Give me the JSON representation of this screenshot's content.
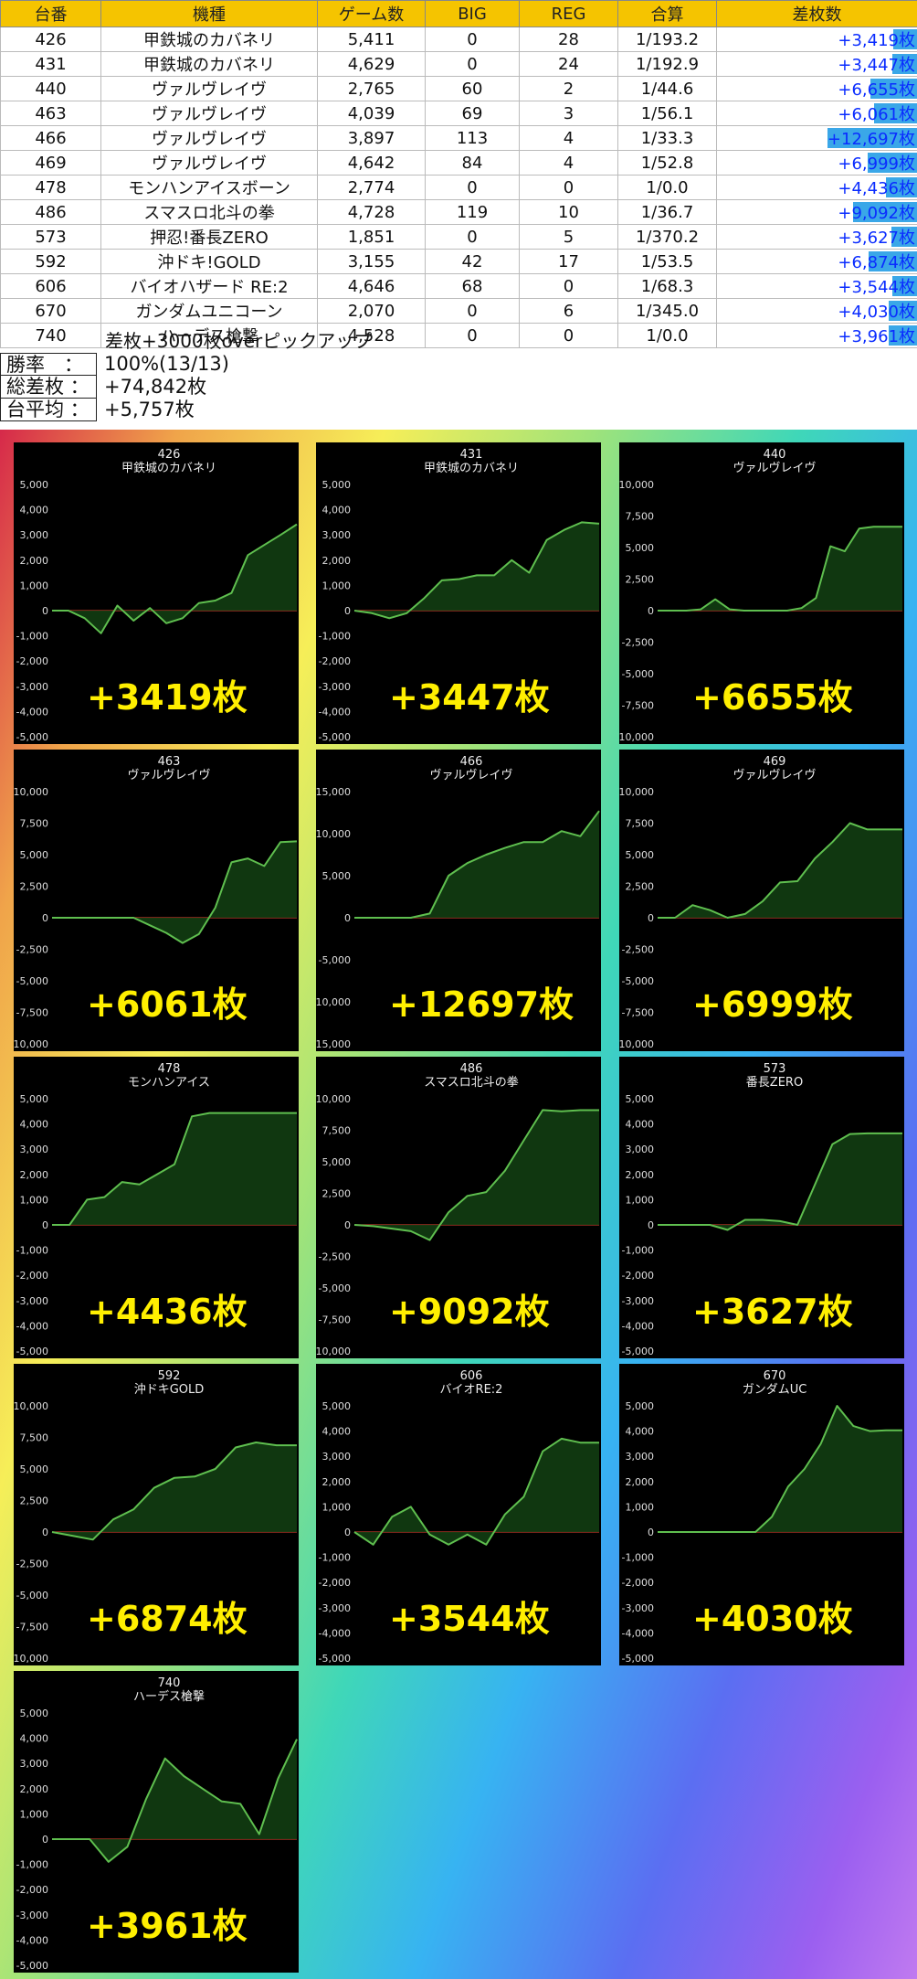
{
  "table": {
    "headers": [
      "台番",
      "機種",
      "ゲーム数",
      "BIG",
      "REG",
      "合算",
      "差枚数"
    ],
    "rows": [
      {
        "num": "426",
        "model": "甲鉄城のカバネリ",
        "games": "5,411",
        "big": "0",
        "reg": "28",
        "total": "1/193.2",
        "diff": "+3,419枚",
        "diff_value": 3419
      },
      {
        "num": "431",
        "model": "甲鉄城のカバネリ",
        "games": "4,629",
        "big": "0",
        "reg": "24",
        "total": "1/192.9",
        "diff": "+3,447枚",
        "diff_value": 3447
      },
      {
        "num": "440",
        "model": "ヴァルヴレイヴ",
        "games": "2,765",
        "big": "60",
        "reg": "2",
        "total": "1/44.6",
        "diff": "+6,655枚",
        "diff_value": 6655
      },
      {
        "num": "463",
        "model": "ヴァルヴレイヴ",
        "games": "4,039",
        "big": "69",
        "reg": "3",
        "total": "1/56.1",
        "diff": "+6,061枚",
        "diff_value": 6061
      },
      {
        "num": "466",
        "model": "ヴァルヴレイヴ",
        "games": "3,897",
        "big": "113",
        "reg": "4",
        "total": "1/33.3",
        "diff": "+12,697枚",
        "diff_value": 12697
      },
      {
        "num": "469",
        "model": "ヴァルヴレイヴ",
        "games": "4,642",
        "big": "84",
        "reg": "4",
        "total": "1/52.8",
        "diff": "+6,999枚",
        "diff_value": 6999
      },
      {
        "num": "478",
        "model": "モンハンアイスボーン",
        "games": "2,774",
        "big": "0",
        "reg": "0",
        "total": "1/0.0",
        "diff": "+4,436枚",
        "diff_value": 4436
      },
      {
        "num": "486",
        "model": "スマスロ北斗の拳",
        "games": "4,728",
        "big": "119",
        "reg": "10",
        "total": "1/36.7",
        "diff": "+9,092枚",
        "diff_value": 9092
      },
      {
        "num": "573",
        "model": "押忍!番長ZERO",
        "games": "1,851",
        "big": "0",
        "reg": "5",
        "total": "1/370.2",
        "diff": "+3,627枚",
        "diff_value": 3627
      },
      {
        "num": "592",
        "model": "沖ドキ!GOLD",
        "games": "3,155",
        "big": "42",
        "reg": "17",
        "total": "1/53.5",
        "diff": "+6,874枚",
        "diff_value": 6874
      },
      {
        "num": "606",
        "model": "バイオハザード RE:2",
        "games": "4,646",
        "big": "68",
        "reg": "0",
        "total": "1/68.3",
        "diff": "+3,544枚",
        "diff_value": 3544
      },
      {
        "num": "670",
        "model": "ガンダムユニコーン",
        "games": "2,070",
        "big": "0",
        "reg": "6",
        "total": "1/345.0",
        "diff": "+4,030枚",
        "diff_value": 4030
      },
      {
        "num": "740",
        "model": "ハーデス槍撃",
        "games": "4,528",
        "big": "0",
        "reg": "0",
        "total": "1/0.0",
        "diff": "+3,961枚",
        "diff_value": 3961
      }
    ],
    "bar_color": "#3aa7e8",
    "header_color": "#f5c400"
  },
  "note": "差枚+3000枚overピックアップ",
  "stats": [
    {
      "label": "勝率　：",
      "value": "100%(13/13)"
    },
    {
      "label": "総差枚 ：",
      "value": "+74,842枚"
    },
    {
      "label": "台平均 ：",
      "value": "+5,757枚"
    }
  ],
  "colors": {
    "line": "#5fbf4f",
    "fill": "#123d12",
    "zero_line": "#c0392b",
    "big_label": "#ffef00"
  },
  "chart_data": [
    {
      "type": "area",
      "number": "426",
      "name": "甲鉄城のカバネリ",
      "label": "+3419枚",
      "ylim": [
        -5000,
        5000
      ],
      "ticks": [
        "5,000",
        "4,000",
        "3,000",
        "2,000",
        "1,000",
        "0",
        "-1,000",
        "-2,000",
        "-3,000",
        "-4,000",
        "-5,000"
      ],
      "values": [
        0,
        0,
        -300,
        -900,
        200,
        -400,
        100,
        -500,
        -300,
        300,
        400,
        700,
        2200,
        2600,
        3000,
        3419
      ]
    },
    {
      "type": "area",
      "number": "431",
      "name": "甲鉄城のカバネリ",
      "label": "+3447枚",
      "ylim": [
        -5000,
        5000
      ],
      "ticks": [
        "5,000",
        "4,000",
        "3,000",
        "2,000",
        "1,000",
        "0",
        "-1,000",
        "-2,000",
        "-3,000",
        "-4,000",
        "-5,000"
      ],
      "values": [
        0,
        -100,
        -300,
        -100,
        500,
        1200,
        1250,
        1400,
        1400,
        2000,
        1500,
        2800,
        3200,
        3500,
        3447
      ]
    },
    {
      "type": "area",
      "number": "440",
      "name": "ヴァルヴレイヴ",
      "label": "+6655枚",
      "ylim": [
        -10000,
        10000
      ],
      "ticks": [
        "10,000",
        "7,500",
        "5,000",
        "2,500",
        "0",
        "-2,500",
        "-5,000",
        "-7,500",
        "-10,000"
      ],
      "values": [
        0,
        0,
        0,
        100,
        900,
        100,
        0,
        0,
        0,
        0,
        200,
        1000,
        5100,
        4700,
        6500,
        6655,
        6655,
        6655
      ]
    },
    {
      "type": "area",
      "number": "463",
      "name": "ヴァルヴレイヴ",
      "label": "+6061枚",
      "ylim": [
        -10000,
        10000
      ],
      "ticks": [
        "10,000",
        "7,500",
        "5,000",
        "2,500",
        "0",
        "-2,500",
        "-5,000",
        "-7,500",
        "-10,000"
      ],
      "values": [
        0,
        0,
        0,
        0,
        0,
        0,
        -600,
        -1200,
        -2000,
        -1300,
        800,
        4400,
        4700,
        4100,
        6000,
        6061
      ]
    },
    {
      "type": "area",
      "number": "466",
      "name": "ヴァルヴレイヴ",
      "label": "+12697枚",
      "ylim": [
        -15000,
        15000
      ],
      "ticks": [
        "15,000",
        "10,000",
        "5,000",
        "0",
        "-5,000",
        "-10,000",
        "-15,000"
      ],
      "values": [
        0,
        0,
        0,
        0,
        500,
        5000,
        6500,
        7500,
        8300,
        9000,
        9000,
        10300,
        9700,
        12697
      ]
    },
    {
      "type": "area",
      "number": "469",
      "name": "ヴァルヴレイヴ",
      "label": "+6999枚",
      "ylim": [
        -10000,
        10000
      ],
      "ticks": [
        "10,000",
        "7,500",
        "5,000",
        "2,500",
        "0",
        "-2,500",
        "-5,000",
        "-7,500",
        "-10,000"
      ],
      "values": [
        0,
        0,
        1000,
        600,
        0,
        300,
        1300,
        2800,
        2900,
        4700,
        6000,
        7500,
        6999,
        6999,
        6999
      ]
    },
    {
      "type": "area",
      "number": "478",
      "name": "モンハンアイス",
      "label": "+4436枚",
      "ylim": [
        -5000,
        5000
      ],
      "ticks": [
        "5,000",
        "4,000",
        "3,000",
        "2,000",
        "1,000",
        "0",
        "-1,000",
        "-2,000",
        "-3,000",
        "-4,000",
        "-5,000"
      ],
      "values": [
        0,
        0,
        1000,
        1100,
        1700,
        1600,
        2000,
        2400,
        4300,
        4436,
        4436,
        4436,
        4436,
        4436,
        4436
      ]
    },
    {
      "type": "area",
      "number": "486",
      "name": "スマスロ北斗の拳",
      "label": "+9092枚",
      "ylim": [
        -10000,
        10000
      ],
      "ticks": [
        "10,000",
        "7,500",
        "5,000",
        "2,500",
        "0",
        "-2,500",
        "-5,000",
        "-7,500",
        "-10,000"
      ],
      "values": [
        0,
        -100,
        -300,
        -500,
        -1200,
        1000,
        2300,
        2600,
        4300,
        6700,
        9100,
        9000,
        9092,
        9092
      ]
    },
    {
      "type": "area",
      "number": "573",
      "name": "番長ZERO",
      "label": "+3627枚",
      "ylim": [
        -5000,
        5000
      ],
      "ticks": [
        "5,000",
        "4,000",
        "3,000",
        "2,000",
        "1,000",
        "0",
        "-1,000",
        "-2,000",
        "-3,000",
        "-4,000",
        "-5,000"
      ],
      "values": [
        0,
        0,
        0,
        0,
        -200,
        200,
        200,
        150,
        0,
        1600,
        3200,
        3600,
        3627,
        3627,
        3627
      ]
    },
    {
      "type": "area",
      "number": "592",
      "name": "沖ドキGOLD",
      "label": "+6874枚",
      "ylim": [
        -10000,
        10000
      ],
      "ticks": [
        "10,000",
        "7,500",
        "5,000",
        "2,500",
        "0",
        "-2,500",
        "-5,000",
        "-7,500",
        "-10,000"
      ],
      "values": [
        0,
        -300,
        -600,
        1000,
        1800,
        3500,
        4300,
        4400,
        5000,
        6700,
        7100,
        6874,
        6874
      ]
    },
    {
      "type": "area",
      "number": "606",
      "name": "バイオRE:2",
      "label": "+3544枚",
      "ylim": [
        -5000,
        5000
      ],
      "ticks": [
        "5,000",
        "4,000",
        "3,000",
        "2,000",
        "1,000",
        "0",
        "-1,000",
        "-2,000",
        "-3,000",
        "-4,000",
        "-5,000"
      ],
      "values": [
        0,
        -500,
        600,
        1000,
        -100,
        -500,
        -100,
        -500,
        700,
        1400,
        3200,
        3700,
        3544,
        3544
      ]
    },
    {
      "type": "area",
      "number": "670",
      "name": "ガンダムUC",
      "label": "+4030枚",
      "ylim": [
        -5000,
        5000
      ],
      "ticks": [
        "5,000",
        "4,000",
        "3,000",
        "2,000",
        "1,000",
        "0",
        "-1,000",
        "-2,000",
        "-3,000",
        "-4,000",
        "-5,000"
      ],
      "values": [
        0,
        0,
        0,
        0,
        0,
        0,
        0,
        600,
        1800,
        2500,
        3500,
        5000,
        4200,
        4000,
        4030,
        4030
      ]
    },
    {
      "type": "area",
      "number": "740",
      "name": "ハーデス槍撃",
      "label": "+3961枚",
      "ylim": [
        -5000,
        5000
      ],
      "ticks": [
        "5,000",
        "4,000",
        "3,000",
        "2,000",
        "1,000",
        "0",
        "-1,000",
        "-2,000",
        "-3,000",
        "-4,000",
        "-5,000"
      ],
      "values": [
        0,
        0,
        0,
        -900,
        -300,
        1600,
        3200,
        2500,
        2000,
        1500,
        1400,
        200,
        2400,
        3961
      ]
    }
  ]
}
